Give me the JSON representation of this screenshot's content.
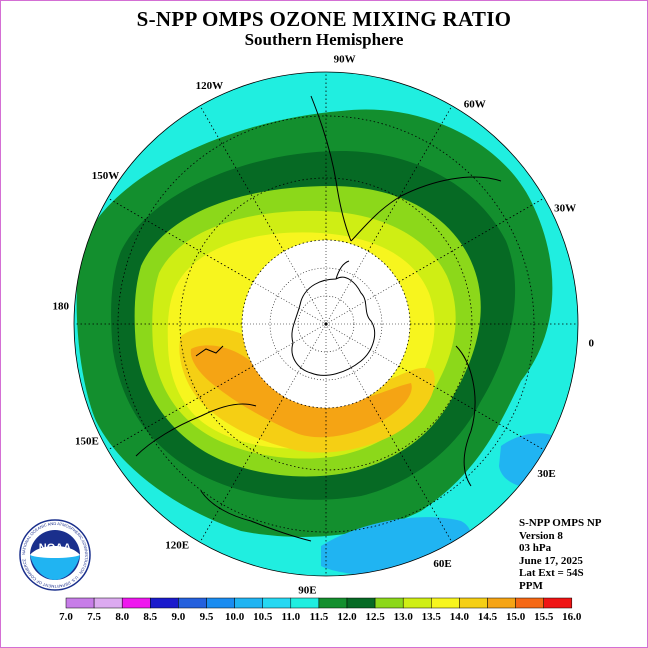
{
  "header": {
    "title": "S-NPP OMPS OZONE MIXING RATIO",
    "subtitle": "Southern Hemisphere"
  },
  "map": {
    "projection": "polar stereographic, south pole",
    "lat_extent": "54S",
    "longitude_labels": [
      {
        "text": "90W",
        "lon": -90
      },
      {
        "text": "60W",
        "lon": -60
      },
      {
        "text": "120W",
        "lon": -120
      },
      {
        "text": "30W",
        "lon": -30
      },
      {
        "text": "150W",
        "lon": -150
      },
      {
        "text": "0",
        "lon": 0
      },
      {
        "text": "180",
        "lon": 180
      },
      {
        "text": "30E",
        "lon": 30
      },
      {
        "text": "150E",
        "lon": 150
      },
      {
        "text": "60E",
        "lon": 60
      },
      {
        "text": "120E",
        "lon": 120
      },
      {
        "text": "90E",
        "lon": 90
      }
    ]
  },
  "info_box": {
    "instrument": "S-NPP OMPS NP",
    "version": "Version 8",
    "level": "03 hPa",
    "date": "June 17, 2025",
    "extent": "Lat Ext = 54S",
    "units": "PPM"
  },
  "colorbar": {
    "labels": [
      "7.0",
      "7.5",
      "8.0",
      "8.5",
      "9.0",
      "9.5",
      "10.0",
      "10.5",
      "11.0",
      "11.5",
      "12.0",
      "12.5",
      "13.0",
      "13.5",
      "14.0",
      "14.5",
      "15.0",
      "15.5",
      "16.0"
    ],
    "colors": [
      "#c77de8",
      "#dcaaf0",
      "#ee17ee",
      "#1a1acc",
      "#2460dd",
      "#1a8cf0",
      "#20b4f2",
      "#25d8f2",
      "#20eee0",
      "#138f2e",
      "#066a24",
      "#8cd81a",
      "#cfee14",
      "#f7f51e",
      "#f5cf14",
      "#f5a414",
      "#f56814",
      "#ef1414",
      "#8c5a3c"
    ]
  },
  "logo": {
    "text": "NOAA",
    "ring_text": "NATIONAL OCEANIC AND ATMOSPHERIC ADMINISTRATION · U.S. DEPARTMENT OF COMMERCE"
  }
}
